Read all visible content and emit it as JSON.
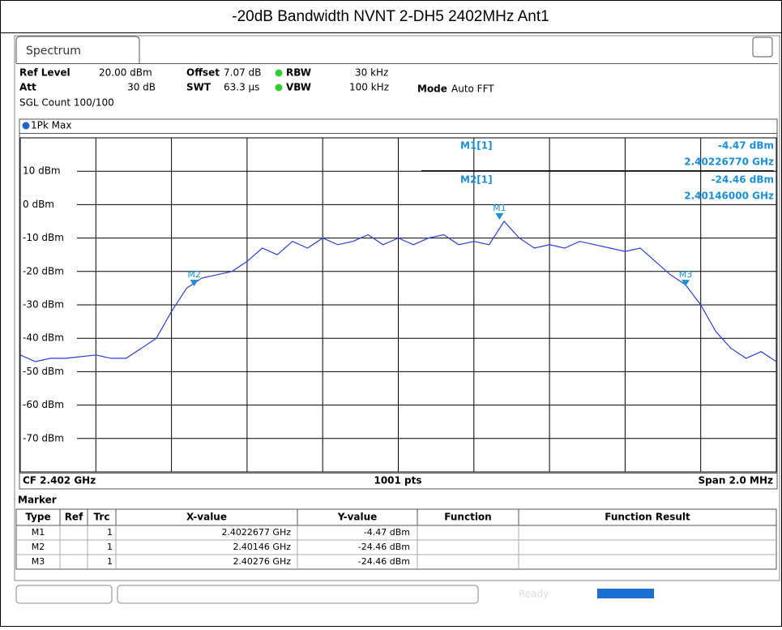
{
  "title": "-20dB Bandwidth NVNT 2-DH5 2402MHz Ant1",
  "tab": "Spectrum",
  "settings": {
    "ref_level_label": "Ref Level",
    "ref_level": "20.00 dBm",
    "att_label": "Att",
    "att": "30 dB",
    "offset_label": "Offset",
    "offset": "7.07 dB",
    "swt_label": "SWT",
    "swt": "63.3 µs",
    "rbw_label": "RBW",
    "rbw": "30 kHz",
    "vbw_label": "VBW",
    "vbw": "100 kHz",
    "mode_label": "Mode",
    "mode": "Auto FFT",
    "count": "SGL Count 100/100"
  },
  "plot": {
    "trace_name": "1Pk Max",
    "ylim": [
      -80,
      20
    ],
    "yticks": [
      {
        "value": 10,
        "label": "10 dBm"
      },
      {
        "value": 0,
        "label": "0 dBm"
      },
      {
        "value": -10,
        "label": "-10 dBm"
      },
      {
        "value": -20,
        "label": "-20 dBm"
      },
      {
        "value": -30,
        "label": "-30 dBm"
      },
      {
        "value": -40,
        "label": "-40 dBm"
      },
      {
        "value": -50,
        "label": "-50 dBm"
      },
      {
        "value": -60,
        "label": "-60 dBm"
      },
      {
        "value": -70,
        "label": "-70 dBm"
      }
    ],
    "trace": [
      -45,
      -47,
      -46,
      -46,
      -45.5,
      -45,
      -46,
      -46,
      -43,
      -40,
      -32,
      -25,
      -22,
      -21,
      -20,
      -17,
      -13,
      -15,
      -11,
      -13,
      -10,
      -12,
      -11,
      -9,
      -12,
      -10,
      -12,
      -10,
      -9,
      -12,
      -11,
      -12,
      -5,
      -10,
      -13,
      -12,
      -13,
      -11,
      -12,
      -13,
      -14,
      -13,
      -17,
      -21,
      -24,
      -30,
      -38,
      -43,
      -46,
      -44,
      -47
    ],
    "center": 2.402,
    "center_label": "CF 2.402 GHz",
    "points_label": "1001 pts",
    "span": 0.002,
    "span_label": "Span 2.0 MHz",
    "readout": [
      {
        "name": "M1[1]",
        "y": "-4.47 dBm",
        "x": "2.40226770 GHz"
      },
      {
        "name": "M2[1]",
        "y": "-24.46 dBm",
        "x": "2.40146000 GHz"
      }
    ]
  },
  "markers": {
    "title": "Marker",
    "columns": [
      "Type",
      "Ref",
      "Trc",
      "X-value",
      "Y-value",
      "Function",
      "Function Result"
    ],
    "rows": [
      [
        "M1",
        "",
        "1",
        "2.4022677 GHz",
        "-4.47 dBm",
        "",
        ""
      ],
      [
        "M2",
        "",
        "1",
        "2.40146 GHz",
        "-24.46 dBm",
        "",
        ""
      ],
      [
        "M3",
        "",
        "1",
        "2.40276 GHz",
        "-24.46 dBm",
        "",
        ""
      ]
    ],
    "x": [
      2.4022677,
      2.40146,
      2.40276
    ],
    "y": [
      -4.47,
      -24.46,
      -24.46
    ]
  },
  "status": "Ready"
}
